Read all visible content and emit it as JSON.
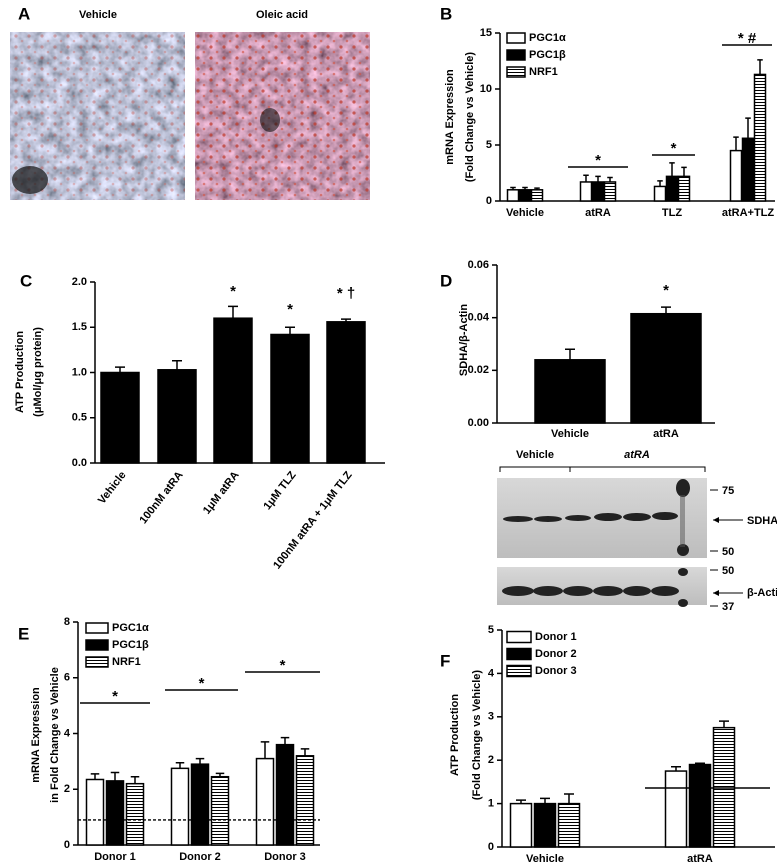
{
  "panel_a": {
    "label": "A",
    "images": [
      "Vehicle",
      "Oleic acid"
    ]
  },
  "blot": {
    "groups": [
      "Vehicle",
      "atRA"
    ],
    "markers": [
      "75",
      "50",
      "50",
      "37"
    ],
    "bands": [
      "SDHA",
      "β-Actin"
    ]
  },
  "chart_data": [
    {
      "type": "bar",
      "panel": "B",
      "ylabel": [
        "mRNA Expression",
        "(Fold Change vs Vehicle)"
      ],
      "categories": [
        "Vehicle",
        "atRA",
        "TLZ",
        "atRA+TLZ"
      ],
      "series": [
        {
          "name": "PGC1α",
          "color": "#ffffff",
          "values": [
            1.0,
            1.7,
            1.3,
            4.5
          ],
          "errors": [
            0.2,
            0.6,
            0.5,
            1.2
          ]
        },
        {
          "name": "PGC1β",
          "color": "#000000",
          "values": [
            1.0,
            1.7,
            2.2,
            5.6
          ],
          "errors": [
            0.2,
            0.5,
            1.2,
            1.8
          ]
        },
        {
          "name": "NRF1",
          "color": "#ffffff",
          "hatch": "horizontal",
          "values": [
            1.0,
            1.7,
            2.2,
            11.3
          ],
          "errors": [
            0.15,
            0.4,
            0.8,
            1.3
          ]
        }
      ],
      "ylim": [
        0,
        15
      ],
      "yticks": [
        0,
        5,
        10,
        15
      ],
      "annotations": [
        "*",
        "*",
        "* #"
      ]
    },
    {
      "type": "bar",
      "panel": "C",
      "ylabel": [
        "ATP Production",
        "(μMol/μg protein)"
      ],
      "categories": [
        "Vehicle",
        "100nM atRA",
        "1μM atRA",
        "1μM TLZ",
        "100nM atRA + 1μM TLZ"
      ],
      "values": [
        1.0,
        1.03,
        1.6,
        1.42,
        1.56
      ],
      "errors": [
        0.06,
        0.1,
        0.13,
        0.08,
        0.03
      ],
      "color": "#000000",
      "ylim": [
        0,
        2
      ],
      "yticks": [
        {
          "value": 0,
          "label": "0.0"
        },
        0.5,
        {
          "value": 1,
          "label": "1.0"
        },
        1.5,
        {
          "value": 2,
          "label": "2.0"
        }
      ],
      "annotations": [
        "*",
        "*",
        "* †"
      ]
    },
    {
      "type": "bar",
      "panel": "D",
      "ylabel": [
        "SDHA/β-Actin"
      ],
      "categories": [
        "Vehicle",
        "atRA"
      ],
      "values": [
        0.024,
        0.0415
      ],
      "errors": [
        0.004,
        0.0025
      ],
      "color": "#000000",
      "ylim": [
        0,
        0.06
      ],
      "yticks": [
        {
          "value": 0,
          "label": "0.00"
        },
        {
          "value": 0.02,
          "label": "0.02"
        },
        {
          "value": 0.04,
          "label": "0.04"
        },
        {
          "value": 0.06,
          "label": "0.06"
        }
      ],
      "annotations": [
        "*"
      ]
    },
    {
      "type": "bar",
      "panel": "E",
      "ylabel": [
        "mRNA Expression",
        "in Fold Change vs Vehicle"
      ],
      "categories": [
        "Donor 1",
        "Donor 2",
        "Donor 3"
      ],
      "series": [
        {
          "name": "PGC1α",
          "color": "#ffffff",
          "values": [
            2.35,
            2.75,
            3.1
          ],
          "errors": [
            0.2,
            0.2,
            0.6
          ]
        },
        {
          "name": "PGC1β",
          "color": "#000000",
          "values": [
            2.3,
            2.9,
            3.6
          ],
          "errors": [
            0.3,
            0.2,
            0.25
          ]
        },
        {
          "name": "NRF1",
          "color": "#ffffff",
          "hatch": "horizontal",
          "values": [
            2.2,
            2.45,
            3.2
          ],
          "errors": [
            0.25,
            0.12,
            0.25
          ]
        }
      ],
      "ylim": [
        0,
        8
      ],
      "yticks": [
        0,
        2,
        4,
        6,
        8
      ],
      "reference_line": 0.9,
      "annotations": [
        "*",
        "*",
        "*"
      ]
    },
    {
      "type": "bar",
      "panel": "F",
      "ylabel": [
        "ATP Production",
        "(Fold Change vs Vehicle)"
      ],
      "categories": [
        "Vehicle",
        "atRA"
      ],
      "series": [
        {
          "name": "Donor 1",
          "color": "#ffffff",
          "values": [
            1.0,
            1.75
          ],
          "errors": [
            0.08,
            0.1
          ]
        },
        {
          "name": "Donor 2",
          "color": "#000000",
          "values": [
            1.0,
            1.9
          ],
          "errors": [
            0.12,
            0.03
          ]
        },
        {
          "name": "Donor 3",
          "color": "#ffffff",
          "hatch": "horizontal",
          "values": [
            1.0,
            2.75
          ],
          "errors": [
            0.22,
            0.15
          ]
        }
      ],
      "ylim": [
        0,
        5
      ],
      "yticks": [
        0,
        1,
        2,
        3,
        4,
        5
      ],
      "annotations": [
        "*"
      ]
    }
  ]
}
